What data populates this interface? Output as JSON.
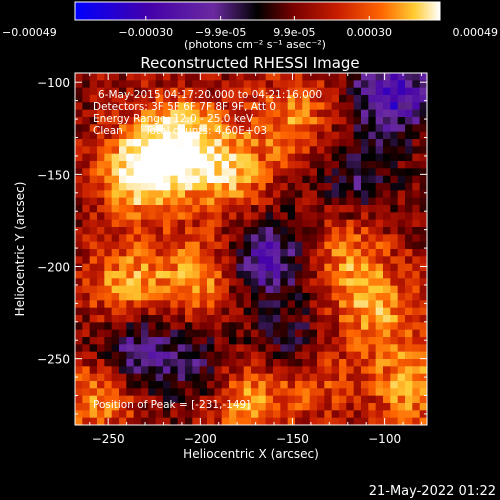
{
  "colorbar": {
    "tick_labels": [
      "-0.00049",
      "-0.00030",
      "-9.9e-05",
      "9.9e-05",
      "0.00030",
      "0.00049"
    ],
    "unit_label": "(photons cm⁻² s⁻¹ asec⁻²)",
    "range": [
      -0.00049,
      0.00049
    ]
  },
  "image_annotations": {
    "time_range": "6-May-2015 04:17:20.000 to 04:21:16.000",
    "detectors": "Detectors: 3F 5F 6F 7F 8F 9F, Att 0",
    "energy_range": "Energy Range: 12.0 - 25.0 keV",
    "method": "Clean",
    "total_counts": "Total counts: 4.60E+03",
    "peak_position": "Position of Peak = [-231,-149]"
  },
  "footer": {
    "timestamp": "21-May-2022 01:22"
  },
  "colors": {
    "background": "#000000",
    "colormap": [
      "#0000ff",
      "#4400aa",
      "#6a2aa0",
      "#000000",
      "#7a0000",
      "#c81e00",
      "#ff6600",
      "#ffcc33",
      "#ffffff"
    ]
  },
  "chart_data": {
    "type": "heatmap",
    "title": "Reconstructed RHESSI Image",
    "xlabel": "Heliocentric X (arcsec)",
    "ylabel": "Heliocentric Y (arcsec)",
    "xlim": [
      -268,
      -77
    ],
    "ylim": [
      -286,
      -95
    ],
    "x_ticks": [
      -250,
      -200,
      -150,
      -100
    ],
    "y_ticks": [
      -100,
      -150,
      -200,
      -250
    ],
    "x_tick_labels": [
      "−250",
      "−200",
      "−150",
      "−100"
    ],
    "y_tick_labels": [
      "−100",
      "−150",
      "−200",
      "−250"
    ],
    "peak": {
      "x": -231,
      "y": -149
    },
    "bright_sources": [
      {
        "x": -231,
        "y": -149,
        "intensity": 1.0
      },
      {
        "x": -210,
        "y": -130,
        "intensity": 0.75
      },
      {
        "x": -185,
        "y": -150,
        "intensity": 0.65
      },
      {
        "x": -240,
        "y": -210,
        "intensity": 0.6
      },
      {
        "x": -200,
        "y": -205,
        "intensity": 0.55
      },
      {
        "x": -150,
        "y": -120,
        "intensity": 0.5
      },
      {
        "x": -120,
        "y": -195,
        "intensity": 0.5
      },
      {
        "x": -105,
        "y": -225,
        "intensity": 0.55
      },
      {
        "x": -85,
        "y": -265,
        "intensity": 0.6
      },
      {
        "x": -175,
        "y": -270,
        "intensity": 0.6
      },
      {
        "x": -255,
        "y": -270,
        "intensity": 0.55
      },
      {
        "x": -140,
        "y": -260,
        "intensity": 0.45
      }
    ],
    "negative_regions": [
      {
        "x": -165,
        "y": -195,
        "intensity": -0.7
      },
      {
        "x": -235,
        "y": -245,
        "intensity": -0.6
      },
      {
        "x": -95,
        "y": -105,
        "intensity": -0.8
      },
      {
        "x": -150,
        "y": -245,
        "intensity": -0.5
      },
      {
        "x": -115,
        "y": -150,
        "intensity": -0.4
      },
      {
        "x": -200,
        "y": -255,
        "intensity": -0.4
      }
    ]
  }
}
